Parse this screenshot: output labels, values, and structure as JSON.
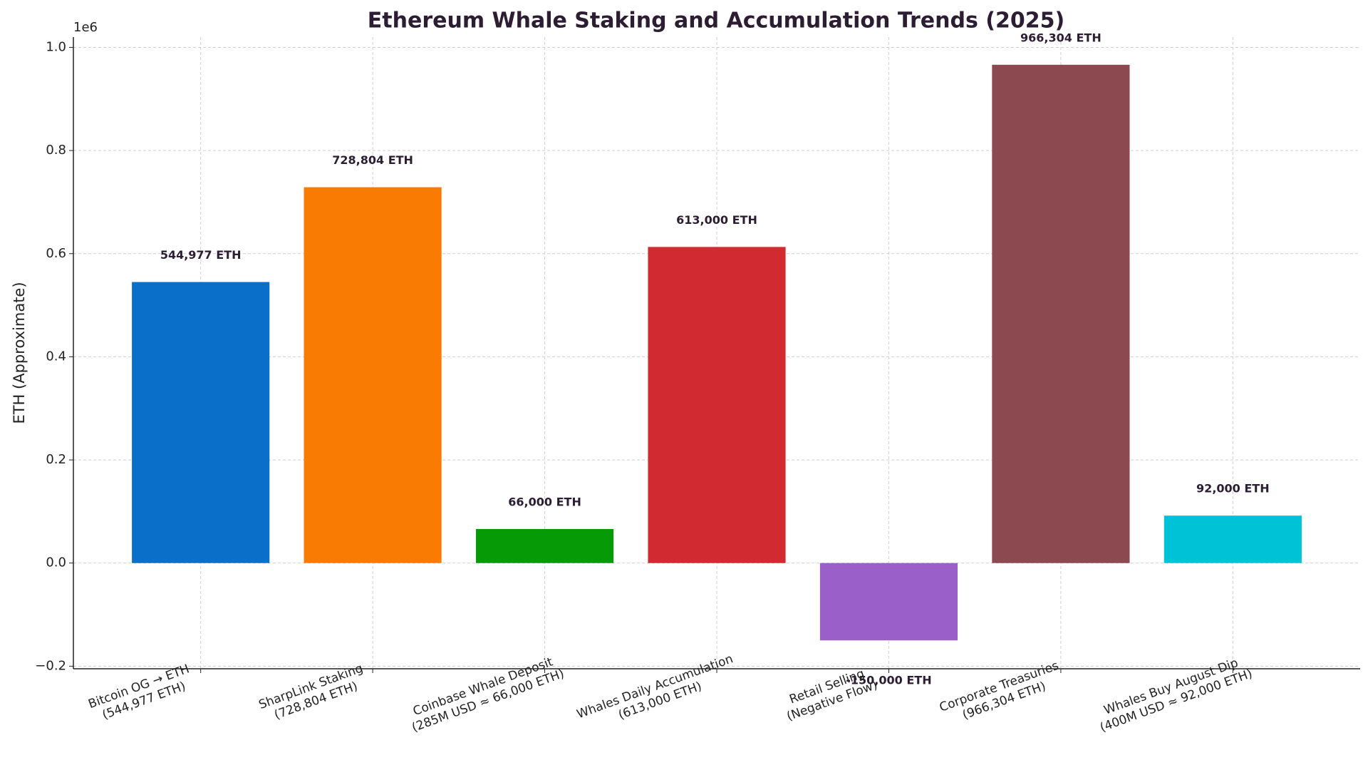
{
  "chart_data": {
    "type": "bar",
    "title": "Ethereum Whale Staking and Accumulation Trends (2025)",
    "ylabel": "ETH (Approximate)",
    "y_offset_label": "1e6",
    "categories": [
      "Bitcoin OG → ETH\n(544,977 ETH)",
      "SharpLink Staking\n(728,804 ETH)",
      "Coinbase Whale Deposit\n(285M USD ≈ 66,000 ETH)",
      "Whales Daily Accumulation\n(613,000 ETH)",
      "Retail Selling\n(Negative Flow)",
      "Corporate Treasuries\n(966,304 ETH)",
      "Whales Buy August Dip\n(400M USD ≈ 92,000 ETH)"
    ],
    "values": [
      544977,
      728804,
      66000,
      613000,
      -150000,
      966304,
      92000
    ],
    "value_labels": [
      "544,977 ETH",
      "728,804 ETH",
      "66,000 ETH",
      "613,000 ETH",
      "-150,000 ETH",
      "966,304 ETH",
      "92,000 ETH"
    ],
    "colors": [
      "#0a6fc9",
      "#f97b04",
      "#079a07",
      "#d12a30",
      "#9a5fc9",
      "#8c4a50",
      "#00c2d7"
    ],
    "ylim": [
      -205000,
      1020000
    ],
    "yticks": [
      {
        "value": -200000,
        "label": "−0.2"
      },
      {
        "value": 0,
        "label": "0.0"
      },
      {
        "value": 200000,
        "label": "0.2"
      },
      {
        "value": 400000,
        "label": "0.4"
      },
      {
        "value": 600000,
        "label": "0.6"
      },
      {
        "value": 800000,
        "label": "0.8"
      },
      {
        "value": 1000000,
        "label": "1.0"
      }
    ],
    "grid": true
  }
}
